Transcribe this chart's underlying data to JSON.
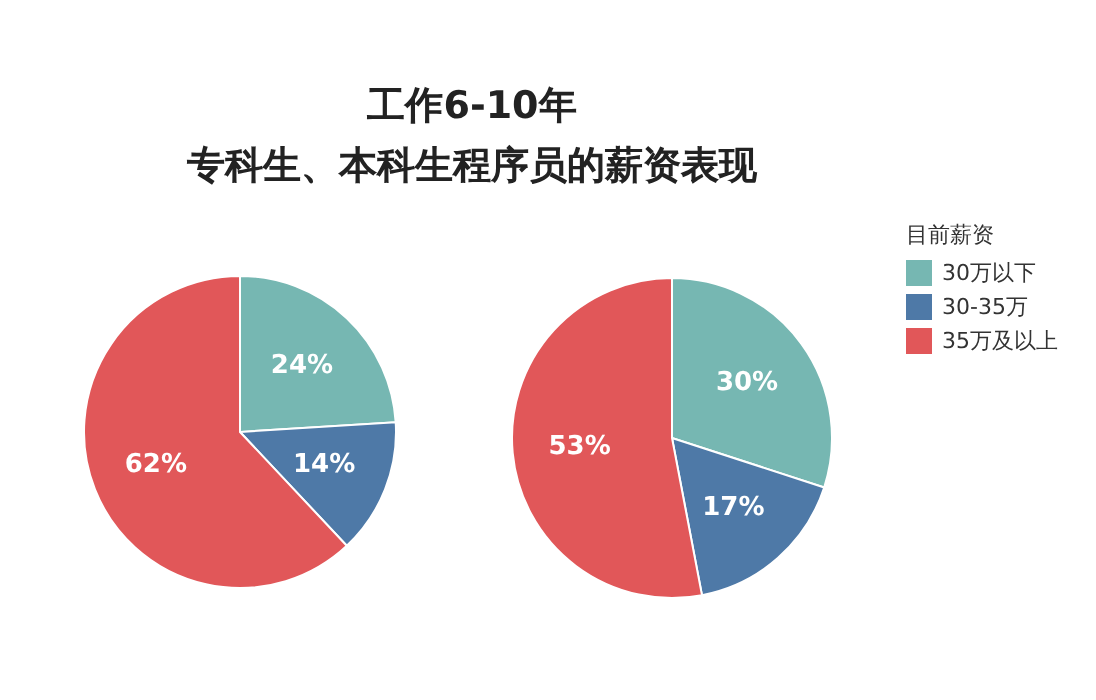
{
  "chart_data": [
    {
      "type": "pie",
      "title": "工作6-10年",
      "subtitle": "专科生、本科生程序员的薪资表现",
      "legend_title": "目前薪资",
      "categories": [
        "30万以下",
        "30-35万",
        "35万及以上"
      ],
      "values": [
        24,
        14,
        62
      ],
      "colors": [
        "#76b7b2",
        "#4e79a7",
        "#e15759"
      ],
      "value_labels": [
        "24%",
        "14%",
        "62%"
      ],
      "legend": "right"
    },
    {
      "type": "pie",
      "values": [
        30,
        17,
        53
      ],
      "colors": [
        "#76b7b2",
        "#4e79a7",
        "#e15759"
      ],
      "value_labels": [
        "30%",
        "17%",
        "53%"
      ]
    }
  ]
}
